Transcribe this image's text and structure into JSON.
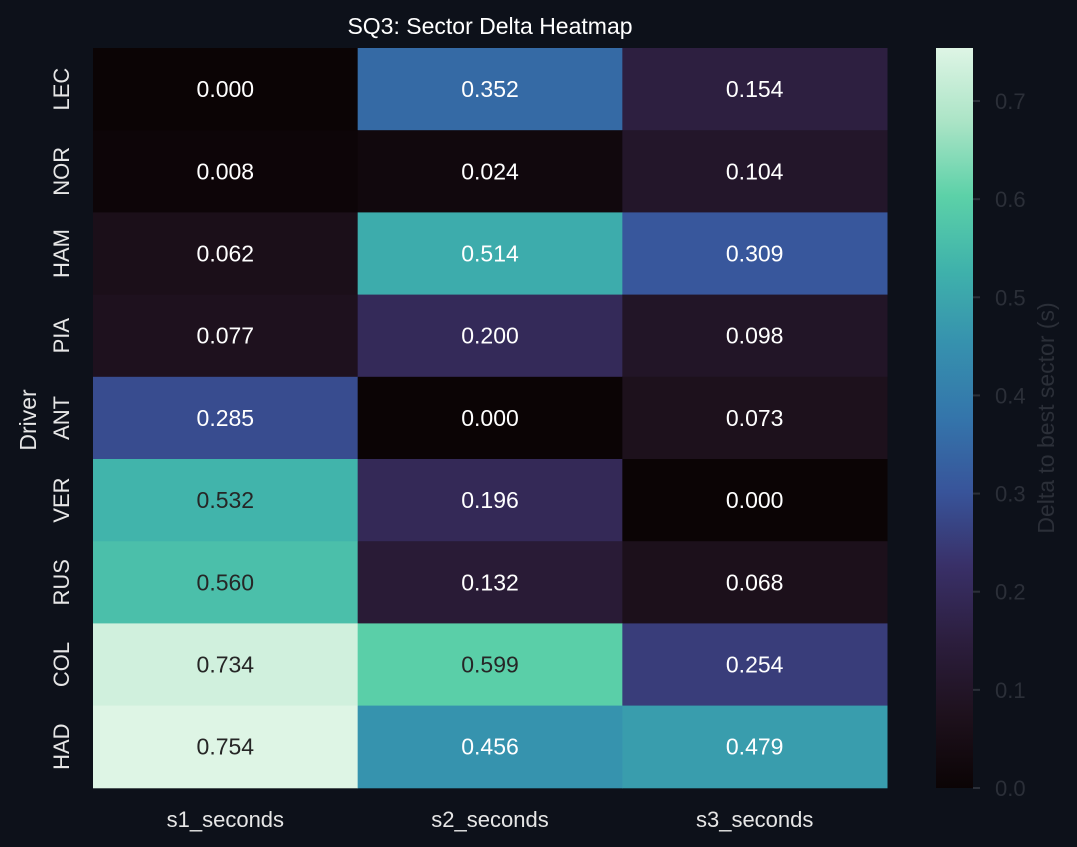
{
  "chart_data": {
    "type": "heatmap",
    "title": "SQ3: Sector Delta Heatmap",
    "xlabel": "",
    "ylabel": "Driver",
    "x_categories": [
      "s1_seconds",
      "s2_seconds",
      "s3_seconds"
    ],
    "y_categories": [
      "LEC",
      "NOR",
      "HAM",
      "PIA",
      "ANT",
      "VER",
      "RUS",
      "COL",
      "HAD"
    ],
    "values": [
      [
        0.0,
        0.352,
        0.154
      ],
      [
        0.008,
        0.024,
        0.104
      ],
      [
        0.062,
        0.514,
        0.309
      ],
      [
        0.077,
        0.2,
        0.098
      ],
      [
        0.285,
        0.0,
        0.073
      ],
      [
        0.532,
        0.196,
        0.0
      ],
      [
        0.56,
        0.132,
        0.068
      ],
      [
        0.734,
        0.599,
        0.254
      ],
      [
        0.754,
        0.456,
        0.479
      ]
    ],
    "value_format": "0.000",
    "colormap": "mako",
    "colorbar": {
      "label": "Delta to best sector (s)",
      "range": [
        0.0,
        0.754
      ],
      "ticks": [
        0.0,
        0.1,
        0.2,
        0.3,
        0.4,
        0.5,
        0.6,
        0.7
      ],
      "tick_labels": [
        "0.0",
        "0.1",
        "0.2",
        "0.3",
        "0.4",
        "0.5",
        "0.6",
        "0.7"
      ]
    },
    "colors": {
      "background": "#0d111a",
      "text": "#e6e6e6",
      "muted_text": "#2b2f38",
      "cell_text_light": "#ffffff",
      "cell_text_dark": "#262626"
    }
  }
}
